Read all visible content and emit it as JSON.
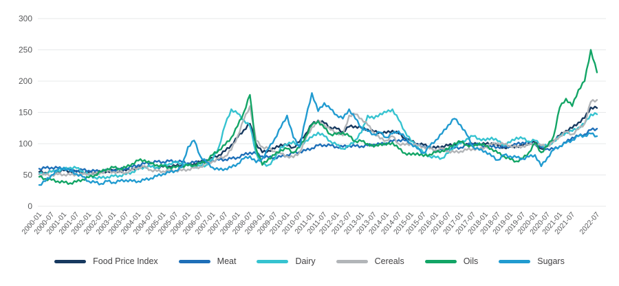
{
  "chart_data": {
    "type": "line",
    "title": "",
    "xlabel": "",
    "ylabel": "",
    "ylim": [
      0,
      300
    ],
    "y_ticks": [
      0,
      50,
      100,
      150,
      200,
      250,
      300
    ],
    "grid": "horizontal",
    "legend_position": "bottom",
    "x_tick_labels": [
      "2000-01",
      "2000-07",
      "2001-01",
      "2001-07",
      "2002-01",
      "2002-07",
      "2003-01",
      "2003-07",
      "2004-01",
      "2004-07",
      "2005-01",
      "2005-07",
      "2006-01",
      "2006-07",
      "2007-01",
      "2007-07",
      "2008-01",
      "2008-07",
      "2009-01",
      "2009-07",
      "2010-01",
      "2010-07",
      "2011-01",
      "2011-07",
      "2012-01",
      "2012-07",
      "2013-01",
      "2013-07",
      "2014-01",
      "2014-07",
      "2015-01",
      "2015-07",
      "2016-01",
      "2016-07",
      "2017-01",
      "2017-07",
      "2018-01",
      "2018-07",
      "2019-01",
      "2019-07",
      "2020-01",
      "2020-07",
      "2021-01",
      "2021-07",
      "2022-07"
    ],
    "x": [
      "2000-01",
      "2000-04",
      "2000-07",
      "2000-10",
      "2001-01",
      "2001-04",
      "2001-07",
      "2001-10",
      "2002-01",
      "2002-04",
      "2002-07",
      "2002-10",
      "2003-01",
      "2003-04",
      "2003-07",
      "2003-10",
      "2004-01",
      "2004-04",
      "2004-07",
      "2004-10",
      "2005-01",
      "2005-04",
      "2005-07",
      "2005-10",
      "2006-01",
      "2006-04",
      "2006-07",
      "2006-10",
      "2007-01",
      "2007-04",
      "2007-07",
      "2007-10",
      "2008-01",
      "2008-04",
      "2008-07",
      "2008-10",
      "2009-01",
      "2009-04",
      "2009-07",
      "2009-10",
      "2010-01",
      "2010-04",
      "2010-07",
      "2010-10",
      "2011-01",
      "2011-04",
      "2011-07",
      "2011-10",
      "2012-01",
      "2012-04",
      "2012-07",
      "2012-10",
      "2013-01",
      "2013-04",
      "2013-07",
      "2013-10",
      "2014-01",
      "2014-04",
      "2014-07",
      "2014-10",
      "2015-01",
      "2015-04",
      "2015-07",
      "2015-10",
      "2016-01",
      "2016-04",
      "2016-07",
      "2016-10",
      "2017-01",
      "2017-04",
      "2017-07",
      "2017-10",
      "2018-01",
      "2018-04",
      "2018-07",
      "2018-10",
      "2019-01",
      "2019-04",
      "2019-07",
      "2019-10",
      "2020-01",
      "2020-04",
      "2020-07",
      "2020-10",
      "2021-01",
      "2021-04",
      "2021-07",
      "2021-10",
      "2022-01",
      "2022-04",
      "2022-07"
    ],
    "series": [
      {
        "name": "Food Price Index",
        "color": "#17395f",
        "values": [
          55,
          54,
          55,
          56,
          57,
          56,
          55,
          55,
          54,
          54,
          55,
          56,
          57,
          56,
          57,
          60,
          62,
          64,
          63,
          62,
          63,
          64,
          64,
          66,
          66,
          68,
          71,
          74,
          77,
          82,
          88,
          98,
          110,
          122,
          132,
          100,
          86,
          89,
          92,
          99,
          97,
          94,
          103,
          116,
          131,
          137,
          133,
          126,
          124,
          119,
          127,
          128,
          125,
          123,
          119,
          118,
          117,
          121,
          116,
          109,
          104,
          100,
          98,
          95,
          93,
          96,
          97,
          99,
          101,
          100,
          99,
          100,
          99,
          101,
          97,
          94,
          95,
          96,
          97,
          101,
          102,
          92,
          96,
          105,
          113,
          121,
          125,
          134,
          141,
          158,
          157
        ]
      },
      {
        "name": "Meat",
        "color": "#1e6fb8",
        "values": [
          60,
          61,
          62,
          61,
          60,
          58,
          57,
          58,
          57,
          56,
          56,
          57,
          58,
          59,
          61,
          63,
          66,
          68,
          70,
          71,
          71,
          72,
          72,
          71,
          69,
          70,
          71,
          72,
          73,
          74,
          75,
          76,
          78,
          82,
          86,
          84,
          80,
          78,
          78,
          79,
          82,
          85,
          87,
          89,
          93,
          97,
          98,
          97,
          95,
          95,
          97,
          96,
          96,
          97,
          99,
          99,
          101,
          104,
          106,
          105,
          100,
          98,
          96,
          93,
          89,
          90,
          92,
          93,
          94,
          98,
          100,
          98,
          96,
          95,
          95,
          94,
          96,
          99,
          102,
          102,
          99,
          94,
          92,
          91,
          96,
          102,
          110,
          112,
          115,
          122,
          124
        ]
      },
      {
        "name": "Dairy",
        "color": "#36c3d0",
        "values": [
          52,
          53,
          55,
          57,
          59,
          62,
          61,
          56,
          50,
          46,
          45,
          47,
          48,
          49,
          51,
          55,
          59,
          63,
          63,
          62,
          65,
          68,
          70,
          69,
          65,
          63,
          64,
          66,
          75,
          95,
          130,
          155,
          148,
          138,
          128,
          85,
          67,
          66,
          75,
          95,
          98,
          104,
          95,
          105,
          110,
          118,
          112,
          104,
          98,
          92,
          96,
          106,
          118,
          145,
          140,
          148,
          150,
          155,
          138,
          120,
          104,
          96,
          85,
          80,
          78,
          77,
          85,
          96,
          100,
          108,
          112,
          108,
          105,
          110,
          104,
          98,
          102,
          110,
          108,
          104,
          105,
          98,
          96,
          104,
          111,
          118,
          120,
          126,
          132,
          147,
          147
        ]
      },
      {
        "name": "Cereals",
        "color": "#b2b5b8",
        "values": [
          51,
          50,
          50,
          51,
          51,
          50,
          51,
          51,
          52,
          52,
          54,
          56,
          55,
          54,
          54,
          58,
          62,
          63,
          58,
          56,
          56,
          57,
          57,
          57,
          59,
          61,
          63,
          68,
          72,
          76,
          80,
          90,
          112,
          138,
          160,
          105,
          95,
          92,
          88,
          84,
          80,
          78,
          86,
          108,
          126,
          136,
          130,
          122,
          118,
          113,
          145,
          147,
          140,
          130,
          118,
          108,
          105,
          112,
          100,
          98,
          100,
          97,
          95,
          92,
          90,
          92,
          88,
          86,
          88,
          90,
          92,
          91,
          95,
          99,
          101,
          99,
          97,
          94,
          96,
          98,
          100,
          97,
          96,
          103,
          112,
          119,
          115,
          123,
          132,
          167,
          170
        ]
      },
      {
        "name": "Oils",
        "color": "#13a566",
        "values": [
          47,
          44,
          42,
          40,
          38,
          37,
          39,
          43,
          46,
          50,
          55,
          60,
          62,
          60,
          62,
          68,
          73,
          74,
          68,
          66,
          64,
          62,
          62,
          64,
          65,
          66,
          68,
          73,
          82,
          90,
          98,
          110,
          128,
          150,
          178,
          92,
          66,
          76,
          82,
          90,
          92,
          86,
          94,
          112,
          130,
          136,
          125,
          115,
          115,
          118,
          112,
          104,
          104,
          100,
          95,
          100,
          98,
          102,
          92,
          85,
          82,
          85,
          80,
          83,
          86,
          89,
          91,
          101,
          103,
          98,
          95,
          101,
          96,
          92,
          85,
          80,
          75,
          72,
          76,
          86,
          101,
          86,
          96,
          112,
          158,
          172,
          160,
          186,
          200,
          250,
          214
        ]
      },
      {
        "name": "Sugars",
        "color": "#219bd0",
        "values": [
          34,
          40,
          50,
          58,
          62,
          56,
          52,
          47,
          40,
          38,
          36,
          40,
          38,
          40,
          42,
          40,
          40,
          42,
          45,
          48,
          52,
          54,
          57,
          62,
          95,
          105,
          80,
          70,
          62,
          58,
          60,
          62,
          68,
          76,
          80,
          70,
          76,
          92,
          108,
          126,
          145,
          110,
          95,
          140,
          181,
          152,
          165,
          155,
          146,
          140,
          155,
          140,
          126,
          120,
          115,
          118,
          110,
          116,
          120,
          110,
          100,
          92,
          85,
          96,
          106,
          116,
          130,
          140,
          130,
          114,
          95,
          90,
          88,
          80,
          74,
          82,
          80,
          78,
          76,
          79,
          82,
          64,
          78,
          90,
          96,
          101,
          106,
          112,
          113,
          116,
          112
        ]
      }
    ]
  },
  "style": {
    "grid_color": "#e7e8ea",
    "axis_text_color": "#58595b",
    "legend_text_color": "#414042",
    "background": "#ffffff"
  }
}
